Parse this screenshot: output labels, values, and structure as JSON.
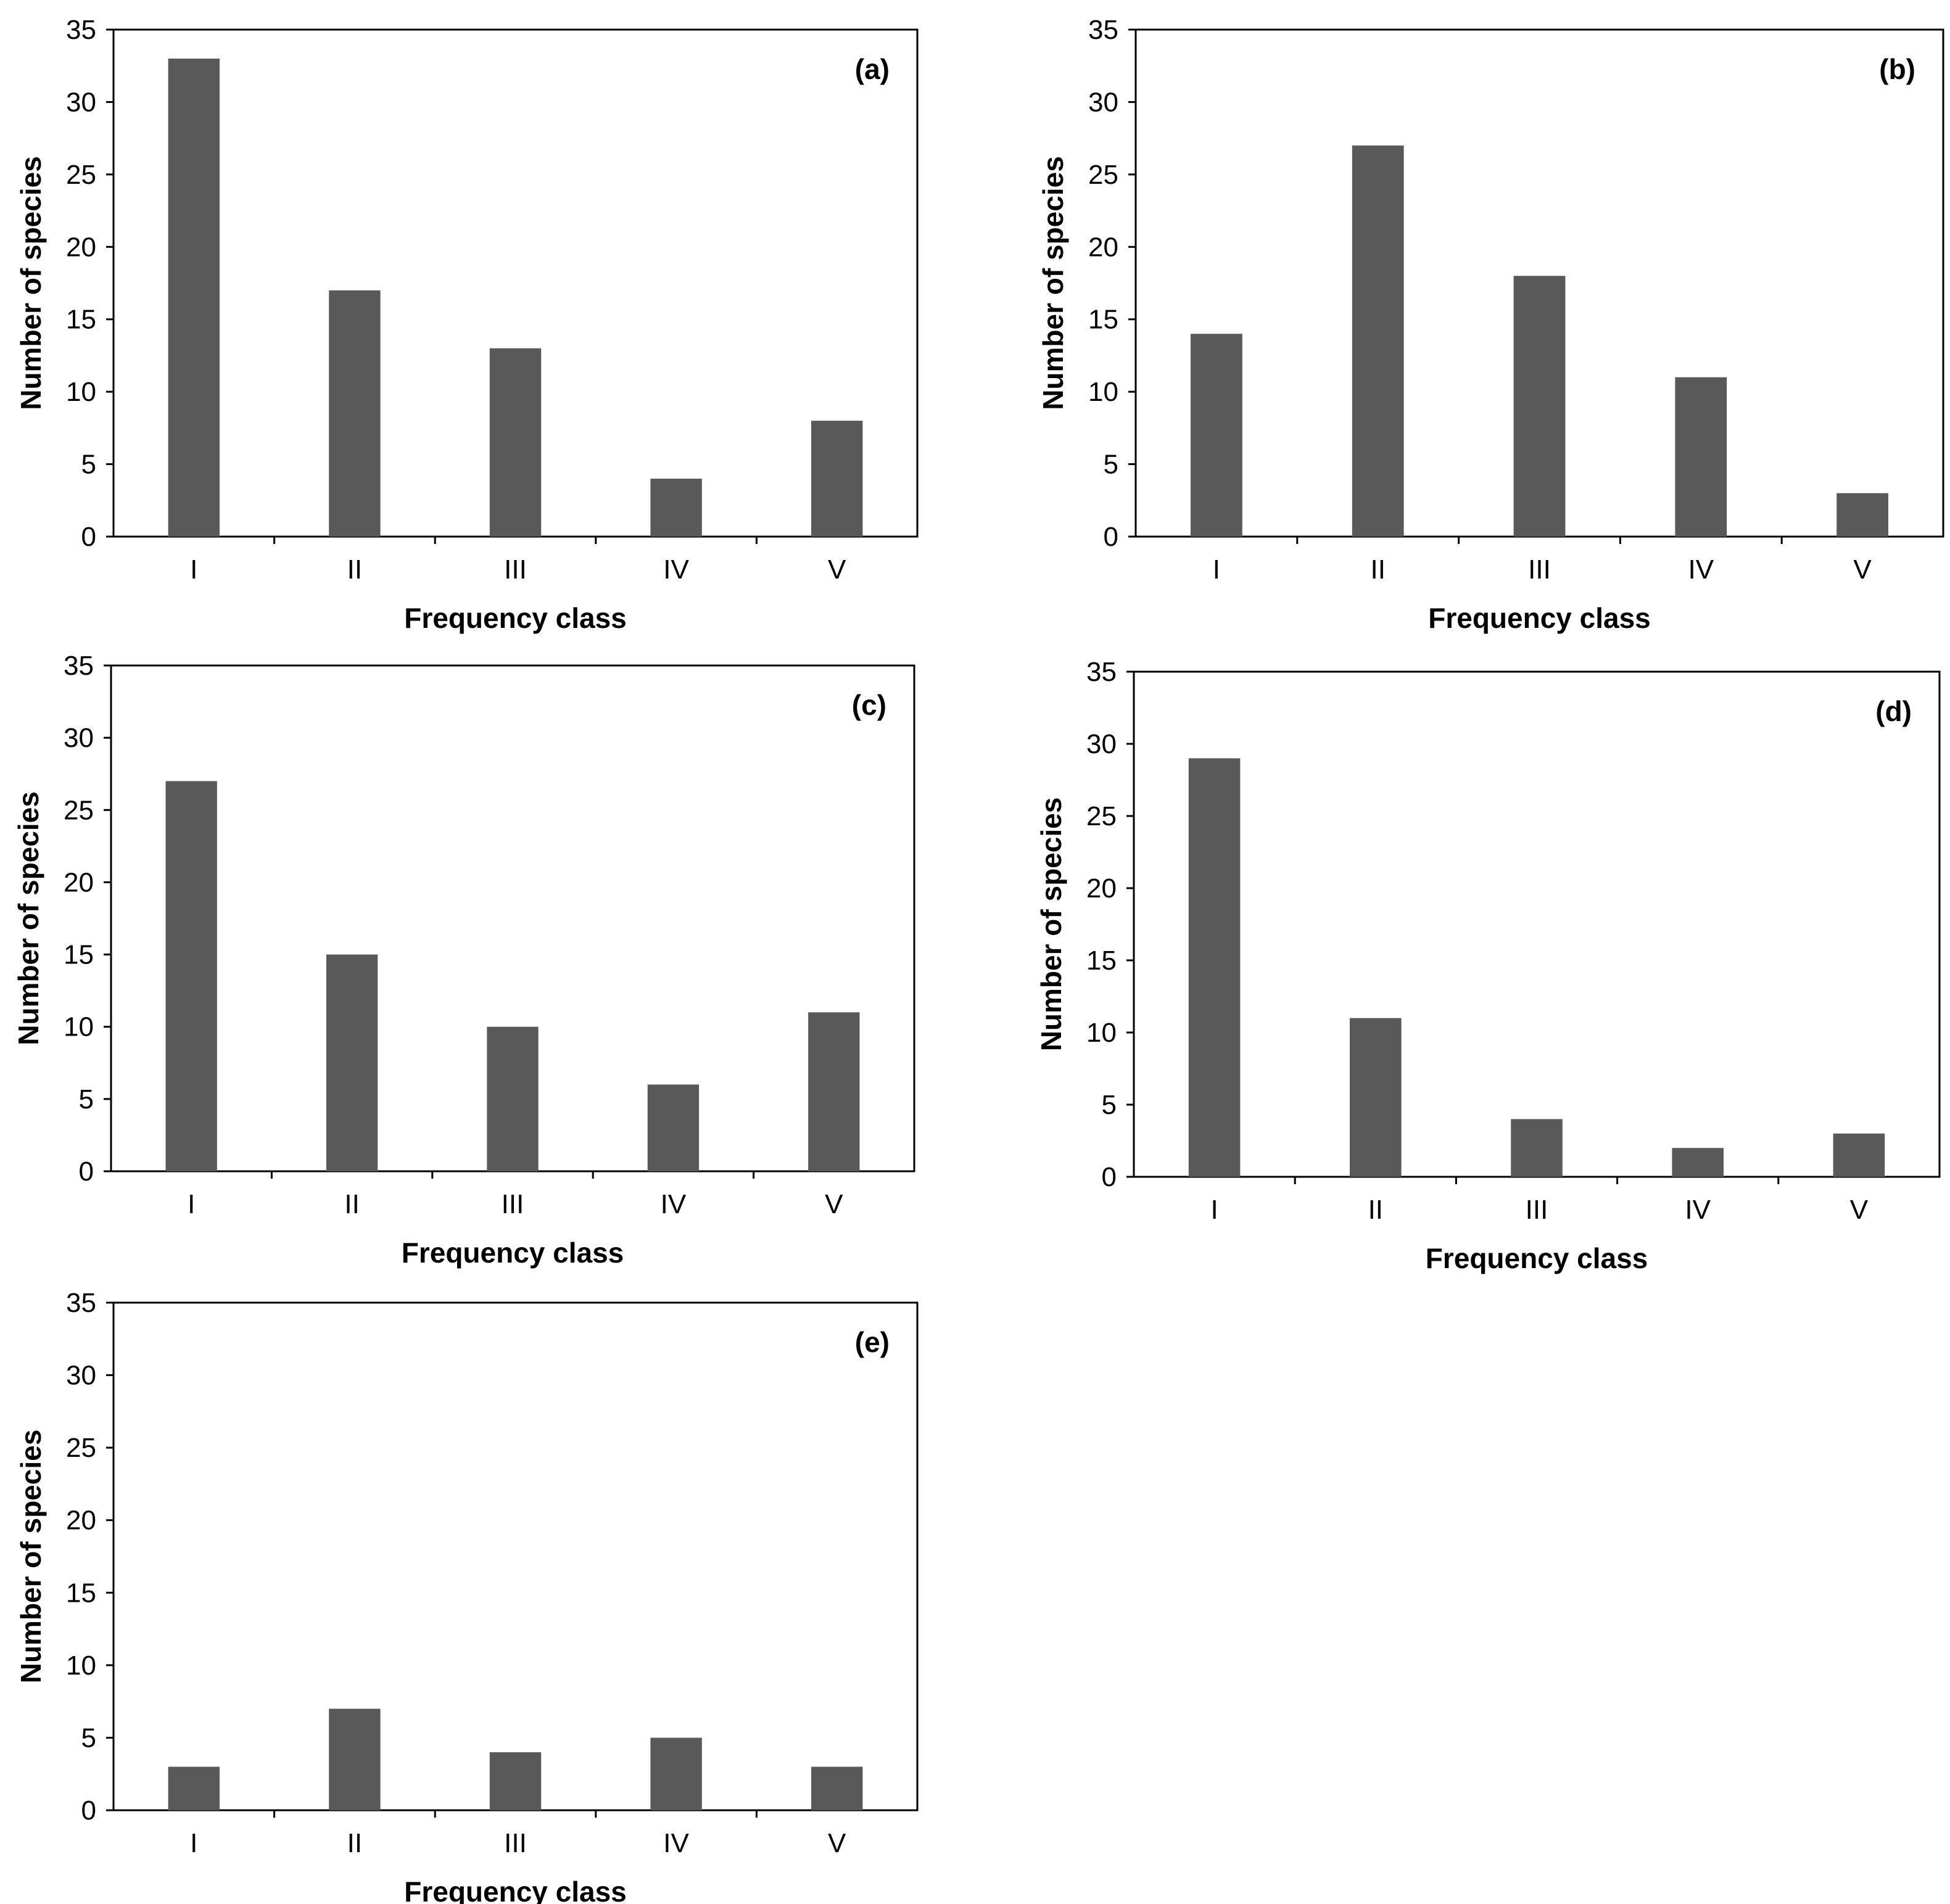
{
  "chart_data": [
    {
      "type": "bar",
      "panel": "(a)",
      "categories": [
        "I",
        "II",
        "III",
        "IV",
        "V"
      ],
      "values": [
        33,
        17,
        13,
        4,
        8
      ],
      "xlabel": "Frequency class",
      "ylabel": "Number of species",
      "ylim": [
        0,
        35
      ],
      "yticks": [
        0,
        5,
        10,
        15,
        20,
        25,
        30,
        35
      ],
      "grid": false
    },
    {
      "type": "bar",
      "panel": "(b)",
      "categories": [
        "I",
        "II",
        "III",
        "IV",
        "V"
      ],
      "values": [
        14,
        27,
        18,
        11,
        3
      ],
      "xlabel": "Frequency class",
      "ylabel": "Number of species",
      "ylim": [
        0,
        35
      ],
      "yticks": [
        0,
        5,
        10,
        15,
        20,
        25,
        30,
        35
      ],
      "grid": false
    },
    {
      "type": "bar",
      "panel": "(c)",
      "categories": [
        "I",
        "II",
        "III",
        "IV",
        "V"
      ],
      "values": [
        27,
        15,
        10,
        6,
        11
      ],
      "xlabel": "Frequency class",
      "ylabel": "Number of species",
      "ylim": [
        0,
        35
      ],
      "yticks": [
        0,
        5,
        10,
        15,
        20,
        25,
        30,
        35
      ],
      "grid": false
    },
    {
      "type": "bar",
      "panel": "(d)",
      "categories": [
        "I",
        "II",
        "III",
        "IV",
        "V"
      ],
      "values": [
        29,
        11,
        4,
        2,
        3
      ],
      "xlabel": "Frequency class",
      "ylabel": "Number of species",
      "ylim": [
        0,
        35
      ],
      "yticks": [
        0,
        5,
        10,
        15,
        20,
        25,
        30,
        35
      ],
      "grid": false
    },
    {
      "type": "bar",
      "panel": "(e)",
      "categories": [
        "I",
        "II",
        "III",
        "IV",
        "V"
      ],
      "values": [
        3,
        7,
        4,
        5,
        3
      ],
      "xlabel": "Frequency class",
      "ylabel": "Number of species",
      "ylim": [
        0,
        35
      ],
      "yticks": [
        0,
        5,
        10,
        15,
        20,
        25,
        30,
        35
      ],
      "grid": false
    }
  ],
  "colors": {
    "bar": "#595959",
    "axis": "#000000"
  }
}
